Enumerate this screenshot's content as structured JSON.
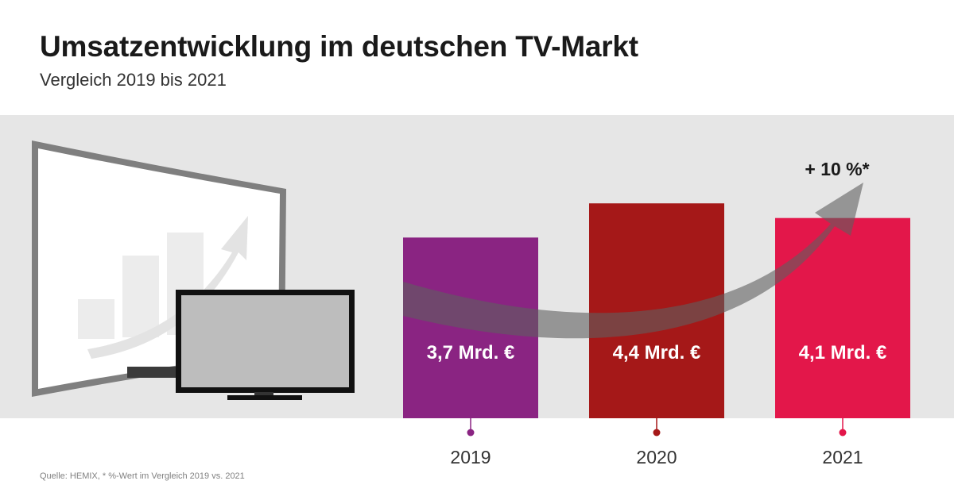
{
  "title": "Umsatzentwicklung im deutschen TV-Markt",
  "subtitle": "Vergleich 2019 bis 2021",
  "source": "Quelle: HEMIX, * %-Wert im Vergleich 2019 vs. 2021",
  "change_label": "+ 10 %*",
  "chart_data": {
    "type": "bar",
    "title": "Umsatzentwicklung im deutschen TV-Markt",
    "subtitle": "Vergleich 2019 bis 2021",
    "categories": [
      "2019",
      "2020",
      "2021"
    ],
    "values": [
      3.7,
      4.4,
      4.1
    ],
    "value_labels": [
      "3,7 Mrd. €",
      "4,4 Mrd. €",
      "4,1 Mrd. €"
    ],
    "colors": [
      "#8a2482",
      "#a51818",
      "#e3174a"
    ],
    "ylim": [
      0,
      5.2
    ],
    "annotation": "+ 10 %*",
    "grid": false,
    "legend": "none"
  },
  "colors": {
    "panel": "#e6e6e6",
    "arrow": "#7a7a7a",
    "text_dark": "#1a1a1a",
    "marker": "#8a2482"
  },
  "icons": [
    "curved-tv-icon",
    "flat-tv-icon",
    "growth-bars-icon",
    "trend-arrow-icon"
  ]
}
